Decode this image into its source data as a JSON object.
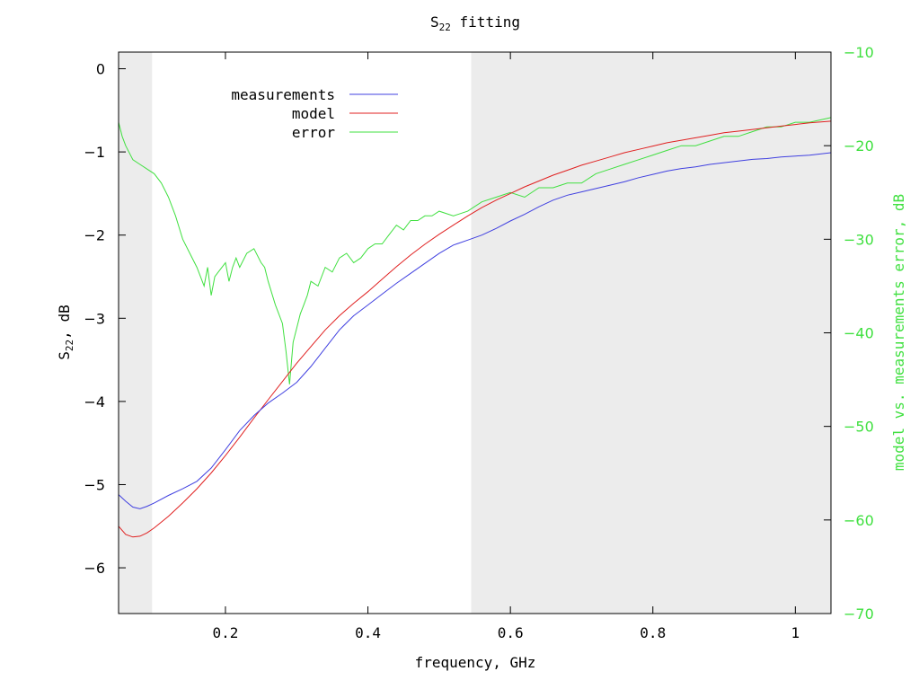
{
  "chart_data": {
    "type": "line",
    "title": {
      "main": "S",
      "sub": "22",
      "rest": " fitting"
    },
    "xlabel": "frequency, GHz",
    "ylabel": {
      "main": "S",
      "sub": "22",
      "rest": ", dB"
    },
    "y2label": "model vs. measurements error, dB",
    "xlim": [
      0.05,
      1.05
    ],
    "ylim": [
      -6.55,
      0.2
    ],
    "y2lim": [
      -70,
      -10
    ],
    "xticks": [
      {
        "v": 0.2,
        "label": "0.2"
      },
      {
        "v": 0.4,
        "label": "0.4"
      },
      {
        "v": 0.6,
        "label": "0.6"
      },
      {
        "v": 0.8,
        "label": "0.8"
      },
      {
        "v": 1.0,
        "label": "1"
      }
    ],
    "yticks": [
      {
        "v": 0,
        "label": "0"
      },
      {
        "v": -1,
        "label": "−1"
      },
      {
        "v": -2,
        "label": "−2"
      },
      {
        "v": -3,
        "label": "−3"
      },
      {
        "v": -4,
        "label": "−4"
      },
      {
        "v": -5,
        "label": "−5"
      },
      {
        "v": -6,
        "label": "−6"
      }
    ],
    "y2ticks": [
      {
        "v": -10,
        "label": "−10"
      },
      {
        "v": -20,
        "label": "−20"
      },
      {
        "v": -30,
        "label": "−30"
      },
      {
        "v": -40,
        "label": "−40"
      },
      {
        "v": -50,
        "label": "−50"
      },
      {
        "v": -60,
        "label": "−60"
      },
      {
        "v": -70,
        "label": "−70"
      }
    ],
    "shaded_ranges": [
      [
        0.05,
        0.097
      ],
      [
        0.545,
        1.05
      ]
    ],
    "shade_color": "#ececec",
    "grid": false,
    "legend_position": "top-left",
    "series": [
      {
        "name": "measurements",
        "axis": "left",
        "color": "#4040e0",
        "x": [
          0.05,
          0.06,
          0.07,
          0.08,
          0.09,
          0.1,
          0.12,
          0.14,
          0.16,
          0.18,
          0.2,
          0.22,
          0.24,
          0.26,
          0.28,
          0.3,
          0.32,
          0.34,
          0.36,
          0.38,
          0.4,
          0.42,
          0.44,
          0.46,
          0.48,
          0.5,
          0.52,
          0.54,
          0.56,
          0.58,
          0.6,
          0.62,
          0.64,
          0.66,
          0.68,
          0.7,
          0.72,
          0.74,
          0.76,
          0.78,
          0.8,
          0.82,
          0.84,
          0.86,
          0.88,
          0.9,
          0.92,
          0.94,
          0.96,
          0.98,
          1.0,
          1.02,
          1.05
        ],
        "y": [
          -5.12,
          -5.2,
          -5.27,
          -5.29,
          -5.26,
          -5.22,
          -5.13,
          -5.05,
          -4.96,
          -4.8,
          -4.58,
          -4.35,
          -4.17,
          -4.02,
          -3.9,
          -3.77,
          -3.58,
          -3.36,
          -3.14,
          -2.97,
          -2.84,
          -2.71,
          -2.58,
          -2.46,
          -2.34,
          -2.22,
          -2.12,
          -2.06,
          -2.0,
          -1.92,
          -1.83,
          -1.75,
          -1.66,
          -1.58,
          -1.52,
          -1.48,
          -1.44,
          -1.4,
          -1.36,
          -1.31,
          -1.27,
          -1.23,
          -1.2,
          -1.18,
          -1.15,
          -1.13,
          -1.11,
          -1.09,
          -1.08,
          -1.06,
          -1.05,
          -1.04,
          -1.01
        ]
      },
      {
        "name": "model",
        "axis": "left",
        "color": "#e02020",
        "x": [
          0.05,
          0.06,
          0.07,
          0.08,
          0.09,
          0.1,
          0.12,
          0.14,
          0.16,
          0.18,
          0.2,
          0.22,
          0.24,
          0.26,
          0.28,
          0.3,
          0.32,
          0.34,
          0.36,
          0.38,
          0.4,
          0.42,
          0.44,
          0.46,
          0.48,
          0.5,
          0.52,
          0.54,
          0.56,
          0.58,
          0.6,
          0.62,
          0.64,
          0.66,
          0.68,
          0.7,
          0.72,
          0.74,
          0.76,
          0.78,
          0.8,
          0.82,
          0.84,
          0.86,
          0.88,
          0.9,
          0.92,
          0.94,
          0.96,
          0.98,
          1.0,
          1.02,
          1.05
        ],
        "y": [
          -5.5,
          -5.6,
          -5.63,
          -5.62,
          -5.58,
          -5.52,
          -5.38,
          -5.22,
          -5.05,
          -4.86,
          -4.65,
          -4.43,
          -4.2,
          -3.98,
          -3.76,
          -3.54,
          -3.34,
          -3.14,
          -2.97,
          -2.82,
          -2.68,
          -2.53,
          -2.38,
          -2.24,
          -2.11,
          -1.99,
          -1.88,
          -1.77,
          -1.67,
          -1.58,
          -1.5,
          -1.42,
          -1.35,
          -1.28,
          -1.22,
          -1.16,
          -1.11,
          -1.06,
          -1.01,
          -0.97,
          -0.93,
          -0.89,
          -0.86,
          -0.83,
          -0.8,
          -0.77,
          -0.75,
          -0.73,
          -0.71,
          -0.69,
          -0.67,
          -0.65,
          -0.63
        ]
      },
      {
        "name": "error",
        "axis": "right",
        "color": "#40e040",
        "x": [
          0.05,
          0.055,
          0.06,
          0.07,
          0.08,
          0.09,
          0.1,
          0.11,
          0.12,
          0.13,
          0.14,
          0.15,
          0.16,
          0.17,
          0.175,
          0.18,
          0.185,
          0.19,
          0.2,
          0.205,
          0.21,
          0.215,
          0.22,
          0.23,
          0.24,
          0.25,
          0.255,
          0.26,
          0.27,
          0.28,
          0.285,
          0.29,
          0.295,
          0.3,
          0.305,
          0.31,
          0.315,
          0.32,
          0.33,
          0.34,
          0.35,
          0.36,
          0.37,
          0.38,
          0.39,
          0.4,
          0.41,
          0.42,
          0.43,
          0.44,
          0.45,
          0.46,
          0.47,
          0.48,
          0.49,
          0.5,
          0.52,
          0.54,
          0.56,
          0.58,
          0.6,
          0.62,
          0.64,
          0.66,
          0.68,
          0.7,
          0.72,
          0.74,
          0.76,
          0.78,
          0.8,
          0.82,
          0.84,
          0.86,
          0.88,
          0.9,
          0.92,
          0.94,
          0.96,
          0.98,
          1.0,
          1.02,
          1.05
        ],
        "y": [
          -17.5,
          -19.0,
          -20.0,
          -21.5,
          -22.0,
          -22.5,
          -23.0,
          -24.0,
          -25.5,
          -27.5,
          -30.0,
          -31.5,
          -33.0,
          -35.0,
          -33.0,
          -36.0,
          -34.0,
          -33.5,
          -32.5,
          -34.5,
          -33.0,
          -32.0,
          -33.0,
          -31.5,
          -31.0,
          -32.5,
          -33.0,
          -34.5,
          -37.0,
          -39.0,
          -42.0,
          -45.5,
          -41.0,
          -39.5,
          -38.0,
          -37.0,
          -36.0,
          -34.5,
          -35.0,
          -33.0,
          -33.5,
          -32.0,
          -31.5,
          -32.5,
          -32.0,
          -31.0,
          -30.5,
          -30.5,
          -29.5,
          -28.5,
          -29.0,
          -28.0,
          -28.0,
          -27.5,
          -27.5,
          -27.0,
          -27.5,
          -27.0,
          -26.0,
          -25.5,
          -25.0,
          -25.5,
          -24.5,
          -24.5,
          -24.0,
          -24.0,
          -23.0,
          -22.5,
          -22.0,
          -21.5,
          -21.0,
          -20.5,
          -20.0,
          -20.0,
          -19.5,
          -19.0,
          -19.0,
          -18.5,
          -18.0,
          -18.0,
          -17.5,
          -17.5,
          -17.0
        ]
      }
    ]
  }
}
